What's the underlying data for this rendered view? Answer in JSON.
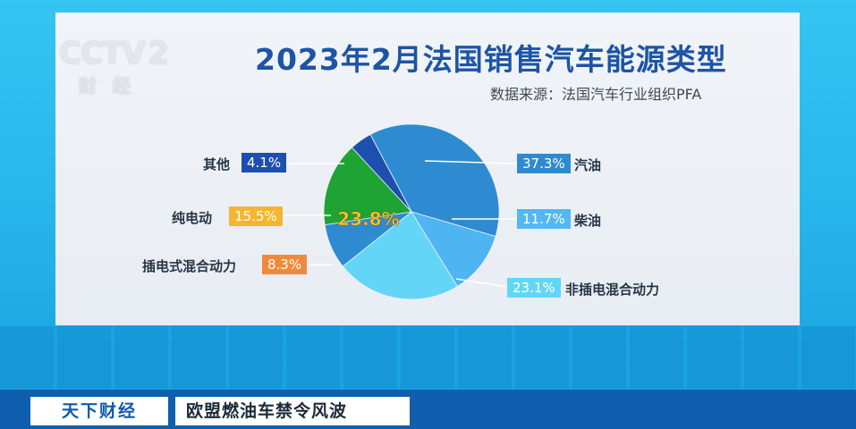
{
  "broadcast": {
    "logo_text": "CCTV",
    "logo_channel": "2",
    "logo_sub": "财经",
    "program": "天下财经",
    "headline": "欧盟燃油车禁令风波"
  },
  "chart_data": {
    "type": "pie",
    "title": "2023年2月法国销售汽车能源类型",
    "subtitle": "数据来源：法国汽车行业组织PFA",
    "slices": [
      {
        "name": "汽油",
        "value": 37.3,
        "label": "37.3%",
        "color": "#2e8bd1",
        "tag_color": "#2e8bd1"
      },
      {
        "name": "柴油",
        "value": 11.7,
        "label": "11.7%",
        "color": "#4fb4f2",
        "tag_color": "#52b8f2"
      },
      {
        "name": "非插电混合动力",
        "value": 23.1,
        "label": "23.1%",
        "color": "#63d6f7",
        "tag_color": "#63d6f7"
      },
      {
        "name": "插电式混合动力",
        "value": 8.3,
        "label": "8.3%",
        "color": "#2e8bd1",
        "tag_color": "#f08a3a"
      },
      {
        "name": "纯电动",
        "value": 15.5,
        "label": "15.5%",
        "color": "#1ea334",
        "tag_color": "#f6b530"
      },
      {
        "name": "其他",
        "value": 4.1,
        "label": "4.1%",
        "color": "#1d4fae",
        "tag_color": "#1d4fae"
      }
    ],
    "highlight": {
      "label": "23.8%",
      "color": "#f3c338"
    },
    "legend": "none"
  }
}
